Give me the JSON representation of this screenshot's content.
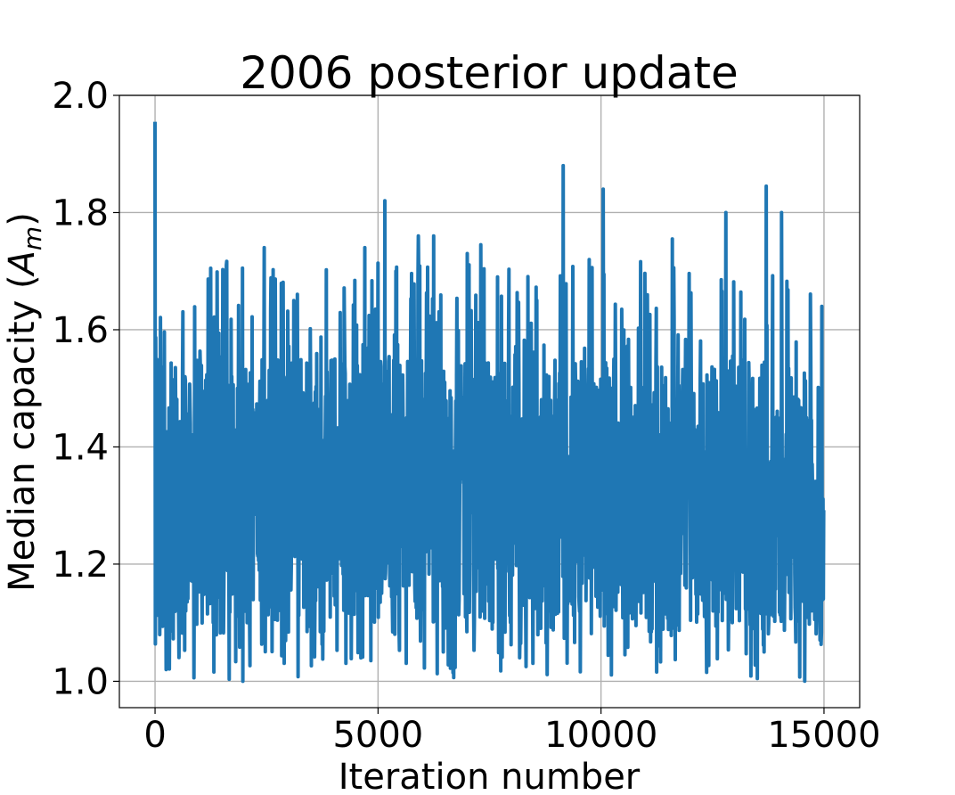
{
  "chart_data": {
    "type": "line",
    "title": "2006 posterior update",
    "xlabel": "Iteration number",
    "ylabel_main": "Median capacity (",
    "ylabel_symbol": "A",
    "ylabel_subscript": "m",
    "ylabel_close": ")",
    "xlim": [
      -800,
      15800
    ],
    "ylim": [
      0.955,
      2.0
    ],
    "xticks": [
      0,
      5000,
      10000,
      15000
    ],
    "xtick_labels": [
      "0",
      "5000",
      "10000",
      "15000"
    ],
    "yticks": [
      1.0,
      1.2,
      1.4,
      1.6,
      1.8,
      2.0
    ],
    "ytick_labels": [
      "1.0",
      "1.2",
      "1.4",
      "1.6",
      "1.8",
      "2.0"
    ],
    "grid": true,
    "series": [
      {
        "color": "#1f77b4",
        "n_points": 15000,
        "start": {
          "x": 0,
          "y": 1.955
        },
        "min": 1.0,
        "max": 1.955,
        "typical_range": [
          1.08,
          1.55
        ],
        "peaks": [
          {
            "x": 0,
            "y": 1.955
          },
          {
            "x": 2450,
            "y": 1.74
          },
          {
            "x": 4700,
            "y": 1.74
          },
          {
            "x": 5150,
            "y": 1.82
          },
          {
            "x": 5400,
            "y": 1.7
          },
          {
            "x": 5900,
            "y": 1.76
          },
          {
            "x": 6250,
            "y": 1.76
          },
          {
            "x": 7000,
            "y": 1.73
          },
          {
            "x": 7300,
            "y": 1.745
          },
          {
            "x": 9150,
            "y": 1.88
          },
          {
            "x": 10050,
            "y": 1.84
          },
          {
            "x": 11600,
            "y": 1.755
          },
          {
            "x": 12800,
            "y": 1.8
          },
          {
            "x": 13700,
            "y": 1.845
          },
          {
            "x": 14050,
            "y": 1.8
          },
          {
            "x": 14950,
            "y": 1.64
          }
        ]
      }
    ]
  }
}
